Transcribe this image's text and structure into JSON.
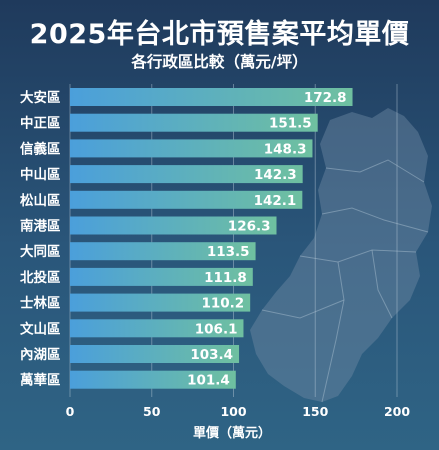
{
  "colors": {
    "background_top": "#1f3a5c",
    "background_bottom": "#2f6485",
    "bar_start": "#4b9fdb",
    "bar_end": "#6fc0a0",
    "text": "#ffffff"
  },
  "chart_data": {
    "type": "bar",
    "orientation": "horizontal",
    "title": "2025年台北市預售案平均單價",
    "subtitle": "各行政區比較（萬元/坪）",
    "xlabel": "單價（萬元）",
    "ylabel": "",
    "categories": [
      "大安區",
      "中正區",
      "信義區",
      "中山區",
      "松山區",
      "南港區",
      "大同區",
      "北投區",
      "士林區",
      "文山區",
      "內湖區",
      "萬華區"
    ],
    "values": [
      172.8,
      151.5,
      148.3,
      142.3,
      142.1,
      126.3,
      113.5,
      111.8,
      110.2,
      106.1,
      103.4,
      101.4
    ],
    "value_labels": [
      "172.8",
      "151.5",
      "148.3",
      "142.3",
      "142.1",
      "126.3",
      "113.5",
      "111.8",
      "110.2",
      "106.1",
      "103.4",
      "101.4"
    ],
    "xlim": [
      0,
      200
    ],
    "xticks": [
      "0",
      "50",
      "100",
      "150",
      "200"
    ],
    "grid": "vertical",
    "legend": "none",
    "background_decoration": "taipei-district-map"
  }
}
